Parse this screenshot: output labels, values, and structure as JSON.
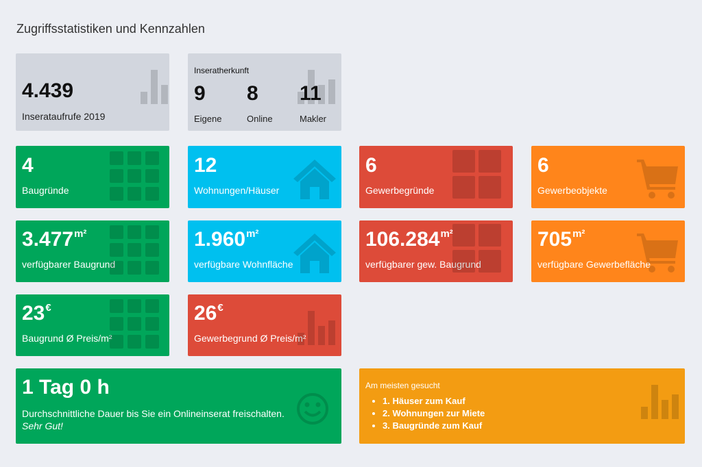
{
  "page": {
    "title": "Zugriffsstatistiken und Kennzahlen"
  },
  "views": {
    "value": "4.439",
    "label": "Inserataufrufe 2019"
  },
  "origin": {
    "title": "Inseratherkunft",
    "items": [
      {
        "value": "9",
        "label": "Eigene"
      },
      {
        "value": "8",
        "label": "Online"
      },
      {
        "value": "11",
        "label": "Makler"
      }
    ]
  },
  "counts": [
    {
      "value": "4",
      "label": "Baugründe"
    },
    {
      "value": "12",
      "label": "Wohnungen/Häuser"
    },
    {
      "value": "6",
      "label": "Gewerbegründe"
    },
    {
      "value": "6",
      "label": "Gewerbeobjekte"
    }
  ],
  "areas": [
    {
      "value": "3.477",
      "unit": "m²",
      "label": "verfügbarer Baugrund"
    },
    {
      "value": "1.960",
      "unit": "m²",
      "label": "verfügbare Wohnfläche"
    },
    {
      "value": "106.284",
      "unit": "m²",
      "label": "verfügbarer gew. Baugrund"
    },
    {
      "value": "705",
      "unit": "m²",
      "label": "verfügbare Gewerbefläche"
    }
  ],
  "prices": [
    {
      "value": "23",
      "unit": "€",
      "label": "Baugrund Ø Preis/m²"
    },
    {
      "value": "26",
      "unit": "€",
      "label": "Gewerbegrund Ø Preis/m²"
    }
  ],
  "duration": {
    "value": "1 Tag 0 h",
    "label": "Durchschnittliche Dauer bis Sie ein Onlineinserat freischalten.",
    "rating": "Sehr Gut!"
  },
  "most_searched": {
    "title": "Am meisten gesucht",
    "items": [
      "1. Häuser zum Kauf",
      "2. Wohnungen zur Miete",
      "3. Baugründe zum Kauf"
    ]
  },
  "icons": [
    "bar-chart-icon",
    "grid-icon",
    "house-icon",
    "cart-icon",
    "smiley-icon"
  ],
  "colors": {
    "gray": "#d2d6de",
    "green": "#00a65a",
    "cyan": "#00c0ef",
    "red": "#dd4b39",
    "orange": "#ff851b",
    "amber": "#f39c12"
  }
}
